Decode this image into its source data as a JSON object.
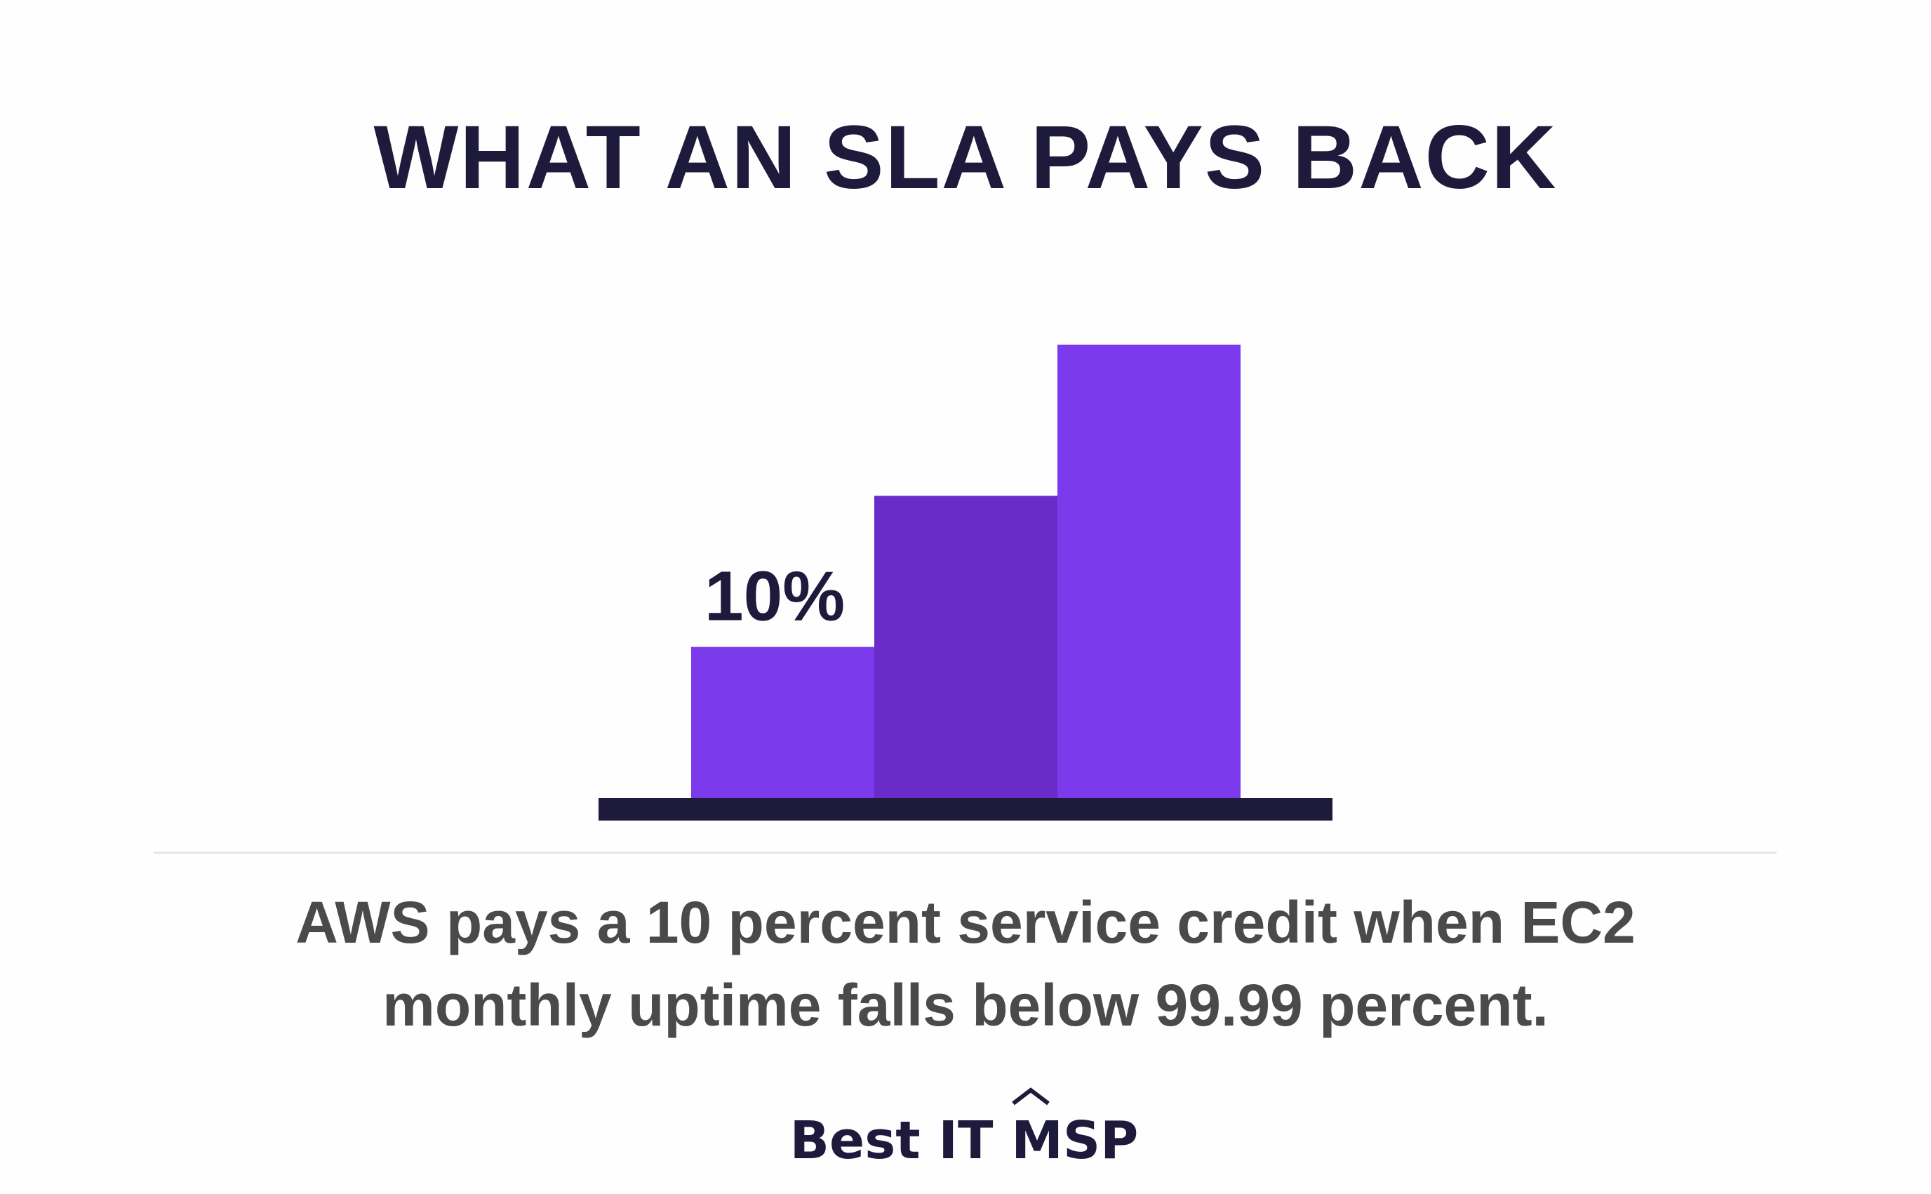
{
  "chart_data": {
    "type": "bar",
    "title": "WHAT AN SLA PAYS BACK",
    "categories": [
      null,
      null,
      null
    ],
    "values": [
      10,
      20,
      30
    ],
    "value_labels": [
      "10%",
      null,
      null
    ],
    "colors": [
      "#7c3aed",
      "#6a2cc8",
      "#7c3aed"
    ],
    "caption_lines": [
      "AWS pays a 10 percent service credit when EC2",
      "monthly uptime falls below 99.99 percent."
    ],
    "brand": "Best IT MSP"
  }
}
